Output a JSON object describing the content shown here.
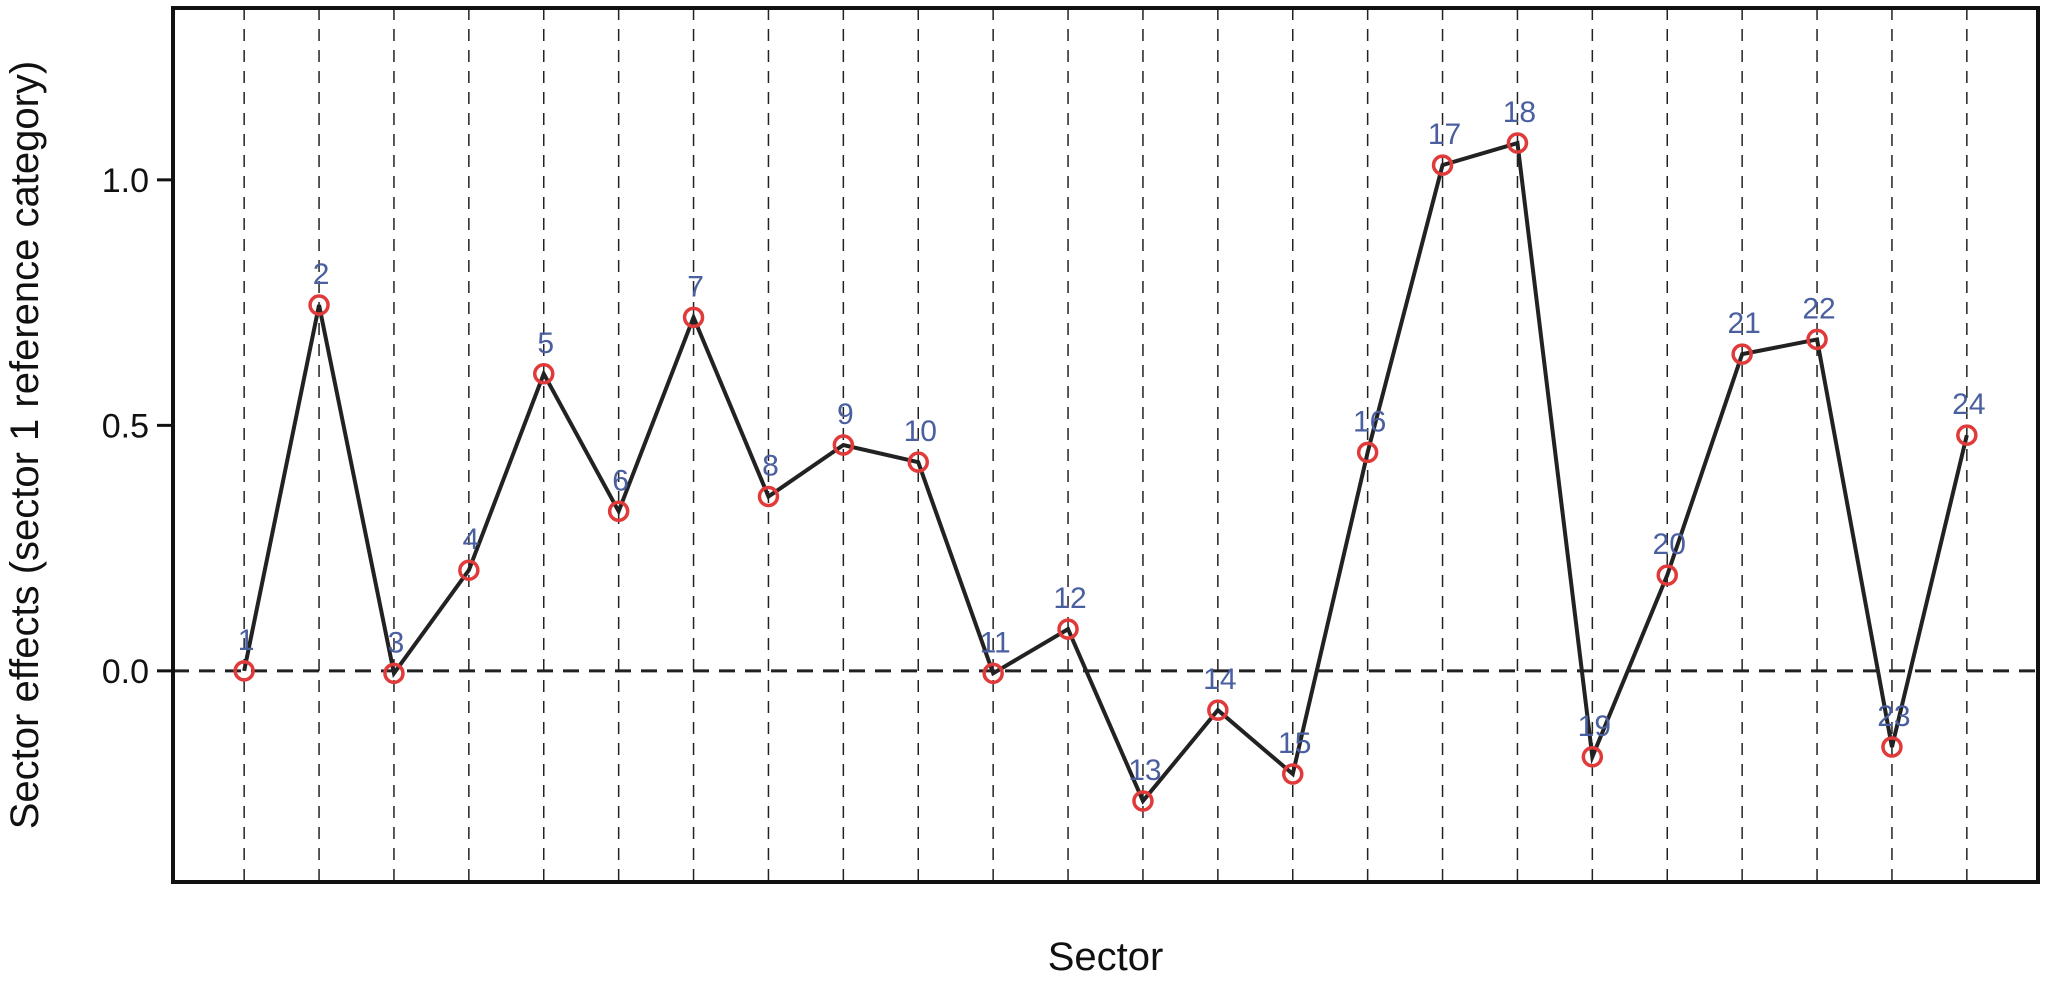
{
  "chart_data": {
    "type": "line",
    "title": "",
    "xlabel": "Sector",
    "ylabel": "Sector effects (sector 1 reference category)",
    "xlim": [
      0.05,
      24.95
    ],
    "ylim": [
      -0.43,
      1.35
    ],
    "yticks": [
      0.0,
      0.5,
      1.0
    ],
    "ytick_labels": [
      "0.0",
      "0.5",
      "1.0"
    ],
    "grid": "vertical dashed line at each sector",
    "reference_line": 0.0,
    "colors": {
      "line": "#222222",
      "marker": "#e03a3a",
      "label": "#4a5fa0",
      "grid": "#222222"
    },
    "series": [
      {
        "x": [
          1,
          2,
          3,
          4,
          5,
          6,
          7,
          8,
          9,
          10,
          11,
          12,
          13,
          14,
          15,
          16,
          17,
          18,
          19,
          20,
          21,
          22,
          23,
          24
        ],
        "y": [
          0.0,
          0.745,
          -0.005,
          0.205,
          0.605,
          0.325,
          0.72,
          0.355,
          0.46,
          0.425,
          -0.005,
          0.085,
          -0.265,
          -0.08,
          -0.21,
          0.445,
          1.03,
          1.075,
          -0.175,
          0.195,
          0.645,
          0.675,
          -0.155,
          0.48
        ],
        "point_labels": [
          "1",
          "2",
          "3",
          "4",
          "5",
          "6",
          "7",
          "8",
          "9",
          "10",
          "11",
          "12",
          "13",
          "14",
          "15",
          "16",
          "17",
          "18",
          "19",
          "20",
          "21",
          "22",
          "23",
          "24"
        ]
      }
    ]
  }
}
